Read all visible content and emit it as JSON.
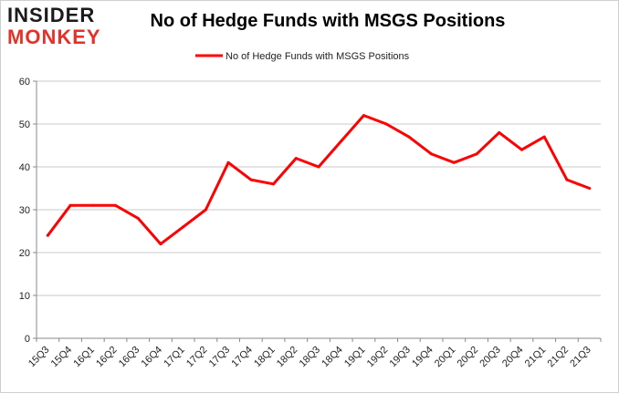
{
  "logo": {
    "line1": "INSIDER",
    "line2": "MONKEY"
  },
  "chart_data": {
    "type": "line",
    "title": "No of Hedge Funds with MSGS Positions",
    "xlabel": "",
    "ylabel": "",
    "categories": [
      "15Q3",
      "15Q4",
      "16Q1",
      "16Q2",
      "16Q3",
      "16Q4",
      "17Q1",
      "17Q2",
      "17Q3",
      "17Q4",
      "18Q1",
      "18Q2",
      "18Q3",
      "18Q4",
      "19Q1",
      "19Q2",
      "19Q3",
      "19Q4",
      "20Q1",
      "20Q2",
      "20Q3",
      "20Q4",
      "21Q1",
      "21Q2",
      "21Q3"
    ],
    "series": [
      {
        "name": "No of Hedge Funds with MSGS Positions",
        "color": "#ff0000",
        "values": [
          24,
          31,
          31,
          31,
          28,
          22,
          26,
          30,
          41,
          37,
          36,
          42,
          40,
          46,
          52,
          50,
          47,
          43,
          41,
          43,
          48,
          44,
          47,
          37,
          35
        ]
      }
    ],
    "ylim": [
      0,
      60
    ],
    "yticks": [
      0,
      10,
      20,
      30,
      40,
      50,
      60
    ],
    "grid": true,
    "legend": "top-center"
  }
}
